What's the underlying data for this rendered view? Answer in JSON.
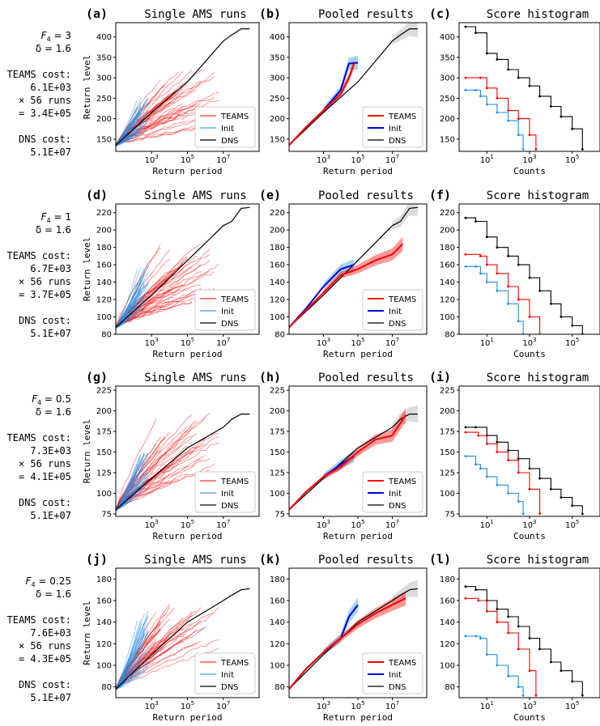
{
  "figure": {
    "legend_labels": [
      "TEAMS",
      "Init",
      "DNS"
    ],
    "colors": {
      "teams": "#ff0000",
      "init": "#1f8fe6",
      "init_pooled": "#0000dd",
      "dns": "#000000",
      "grey_band": "#a8a8a8"
    },
    "x_label_main": "Return period",
    "x_label_hist": "Counts",
    "y_label": "Return level",
    "x_ticks_main": [
      "10^3",
      "10^5",
      "10^7"
    ],
    "x_ticks_hist": [
      "10^1",
      "10^3",
      "10^5"
    ]
  },
  "rows": [
    {
      "annotation": {
        "forcing": "F_4 = 3",
        "delta": "δ = 1.6",
        "teams_cost_label": "TEAMS cost:",
        "teams_cost": "6.1E+03",
        "runs": "× 56 runs",
        "total": "= 3.4E+05",
        "dns_cost_label": "DNS cost:",
        "dns_cost": "5.1E+07"
      },
      "panels": [
        {
          "letter": "(a)",
          "title": "Single AMS runs"
        },
        {
          "letter": "(b)",
          "title": "Pooled results"
        },
        {
          "letter": "(c)",
          "title": "Score histogram"
        }
      ],
      "y_ticks": [
        150,
        200,
        250,
        300,
        350,
        400
      ],
      "ylim": [
        120,
        435
      ]
    },
    {
      "annotation": {
        "forcing": "F_4 = 1",
        "delta": "δ = 1.6",
        "teams_cost_label": "TEAMS cost:",
        "teams_cost": "6.7E+03",
        "runs": "× 56 runs",
        "total": "= 3.7E+05",
        "dns_cost_label": "DNS cost:",
        "dns_cost": "5.1E+07"
      },
      "panels": [
        {
          "letter": "(d)",
          "title": "Single AMS runs"
        },
        {
          "letter": "(e)",
          "title": "Pooled results"
        },
        {
          "letter": "(f)",
          "title": "Score histogram"
        }
      ],
      "y_ticks": [
        80,
        100,
        120,
        140,
        160,
        180,
        200,
        220
      ],
      "ylim": [
        80,
        230
      ]
    },
    {
      "annotation": {
        "forcing": "F_4 = 0.5",
        "delta": "δ = 1.6",
        "teams_cost_label": "TEAMS cost:",
        "teams_cost": "7.3E+03",
        "runs": "× 56 runs",
        "total": "= 4.1E+05",
        "dns_cost_label": "DNS cost:",
        "dns_cost": "5.1E+07"
      },
      "panels": [
        {
          "letter": "(g)",
          "title": "Single AMS runs"
        },
        {
          "letter": "(h)",
          "title": "Pooled results"
        },
        {
          "letter": "(i)",
          "title": "Score histogram"
        }
      ],
      "y_ticks": [
        75,
        100,
        125,
        150,
        175,
        200,
        225
      ],
      "ylim": [
        72,
        230
      ]
    },
    {
      "annotation": {
        "forcing": "F_4 = 0.25",
        "delta": "δ = 1.6",
        "teams_cost_label": "TEAMS cost:",
        "teams_cost": "7.6E+03",
        "runs": "× 56 runs",
        "total": "= 4.3E+05",
        "dns_cost_label": "DNS cost:",
        "dns_cost": "5.1E+07"
      },
      "panels": [
        {
          "letter": "(j)",
          "title": "Single AMS runs"
        },
        {
          "letter": "(k)",
          "title": "Pooled results"
        },
        {
          "letter": "(l)",
          "title": "Score histogram"
        }
      ],
      "y_ticks": [
        80,
        100,
        120,
        140,
        160,
        180
      ],
      "ylim": [
        70,
        190
      ]
    }
  ],
  "chart_data": [
    {
      "type": "line",
      "panel": "(a)",
      "title": "Single AMS runs",
      "xlabel": "Return period",
      "ylabel": "Return level",
      "x_scale": "log",
      "xlim": [
        10,
        1000000000
      ],
      "ylim": [
        120,
        435
      ],
      "series": [
        {
          "name": "DNS",
          "x": [
            10,
            1000,
            100000,
            10000000,
            30000000,
            100000000,
            300000000
          ],
          "values": [
            135,
            215,
            290,
            390,
            405,
            420,
            420
          ]
        },
        {
          "name": "TEAMS",
          "summary": "56 runs",
          "x_end_range": [
            3000,
            10000000
          ],
          "y_end_range": [
            180,
            330
          ]
        },
        {
          "name": "Init",
          "summary": "56 runs",
          "x_end": 1000,
          "y_end_range": [
            170,
            265
          ]
        }
      ]
    },
    {
      "type": "line",
      "panel": "(b)",
      "title": "Pooled results",
      "xlabel": "Return period",
      "x_scale": "log",
      "xlim": [
        10,
        1000000000
      ],
      "ylim": [
        120,
        435
      ],
      "series": [
        {
          "name": "DNS",
          "x": [
            10,
            1000,
            100000,
            10000000,
            30000000,
            100000000,
            300000000
          ],
          "values": [
            135,
            215,
            290,
            390,
            405,
            420,
            420
          ]
        },
        {
          "name": "TEAMS",
          "x": [
            10,
            100,
            1000,
            10000,
            30000,
            60000
          ],
          "values": [
            135,
            180,
            220,
            260,
            300,
            335
          ]
        },
        {
          "name": "Init",
          "x": [
            10,
            100,
            1000,
            10000,
            30000,
            100000
          ],
          "values": [
            135,
            180,
            220,
            270,
            335,
            337
          ]
        }
      ]
    },
    {
      "type": "line",
      "panel": "(c)",
      "title": "Score histogram",
      "xlabel": "Counts",
      "x_scale": "log",
      "xlim": [
        0.5,
        2000000
      ],
      "ylim": [
        120,
        435
      ],
      "series": [
        {
          "name": "DNS",
          "x": [
            1,
            3,
            10,
            30,
            100,
            300,
            1000,
            3000,
            10000,
            30000,
            100000,
            300000
          ],
          "values": [
            425,
            410,
            360,
            345,
            320,
            300,
            280,
            255,
            230,
            205,
            175,
            125
          ]
        },
        {
          "name": "TEAMS",
          "x": [
            1,
            5,
            10,
            30,
            100,
            300,
            1000,
            2000
          ],
          "values": [
            300,
            300,
            275,
            250,
            220,
            200,
            160,
            125
          ]
        },
        {
          "name": "Init",
          "x": [
            1,
            3,
            5,
            10,
            30,
            100,
            300,
            500
          ],
          "values": [
            270,
            270,
            255,
            235,
            215,
            195,
            160,
            125
          ]
        }
      ]
    },
    {
      "type": "line",
      "panel": "(d)",
      "title": "Single AMS runs",
      "xlabel": "Return period",
      "ylabel": "Return level",
      "x_scale": "log",
      "xlim": [
        10,
        1000000000
      ],
      "ylim": [
        80,
        230
      ],
      "series": [
        {
          "name": "DNS",
          "x": [
            10,
            1000,
            100000,
            10000000,
            30000000,
            100000000,
            300000000
          ],
          "values": [
            88,
            125,
            165,
            205,
            210,
            225,
            226
          ]
        },
        {
          "name": "TEAMS",
          "summary": "56 runs",
          "x_end_range": [
            3000,
            10000000
          ],
          "y_end_range": [
            115,
            185
          ]
        },
        {
          "name": "Init",
          "summary": "56 runs",
          "x_end": 1000,
          "y_end_range": [
            110,
            165
          ]
        }
      ]
    },
    {
      "type": "line",
      "panel": "(e)",
      "title": "Pooled results",
      "xlabel": "Return period",
      "x_scale": "log",
      "xlim": [
        10,
        1000000000
      ],
      "ylim": [
        80,
        230
      ],
      "series": [
        {
          "name": "DNS",
          "x": [
            10,
            1000,
            100000,
            10000000,
            30000000,
            100000000,
            300000000
          ],
          "values": [
            88,
            125,
            165,
            205,
            210,
            225,
            226
          ]
        },
        {
          "name": "TEAMS",
          "x": [
            10,
            100,
            1000,
            10000,
            100000,
            1000000,
            10000000,
            40000000
          ],
          "values": [
            88,
            108,
            128,
            148,
            155,
            165,
            172,
            184
          ]
        },
        {
          "name": "Init",
          "x": [
            10,
            100,
            1000,
            10000,
            60000
          ],
          "values": [
            88,
            110,
            135,
            155,
            160
          ]
        }
      ]
    },
    {
      "type": "line",
      "panel": "(f)",
      "title": "Score histogram",
      "xlabel": "Counts",
      "x_scale": "log",
      "xlim": [
        0.5,
        2000000
      ],
      "ylim": [
        80,
        230
      ],
      "series": [
        {
          "name": "DNS",
          "x": [
            1,
            3,
            10,
            30,
            100,
            300,
            1000,
            3000,
            10000,
            30000,
            100000,
            300000
          ],
          "values": [
            214,
            210,
            192,
            180,
            170,
            160,
            145,
            130,
            115,
            100,
            90,
            80
          ]
        },
        {
          "name": "TEAMS",
          "x": [
            1,
            5,
            10,
            30,
            100,
            300,
            1000,
            3000
          ],
          "values": [
            172,
            170,
            160,
            150,
            135,
            120,
            100,
            80
          ]
        },
        {
          "name": "Init",
          "x": [
            1,
            3,
            5,
            10,
            30,
            100,
            300,
            500
          ],
          "values": [
            158,
            158,
            150,
            140,
            130,
            115,
            95,
            80
          ]
        }
      ]
    },
    {
      "type": "line",
      "panel": "(g)",
      "title": "Single AMS runs",
      "xlabel": "Return period",
      "ylabel": "Return level",
      "x_scale": "log",
      "xlim": [
        10,
        1000000000
      ],
      "ylim": [
        72,
        230
      ],
      "series": [
        {
          "name": "DNS",
          "x": [
            10,
            1000,
            100000,
            10000000,
            30000000,
            100000000,
            300000000
          ],
          "values": [
            80,
            118,
            155,
            180,
            190,
            196,
            196
          ]
        },
        {
          "name": "TEAMS",
          "summary": "56 runs",
          "x_end_range": [
            3000,
            10000000
          ],
          "y_end_range": [
            115,
            200
          ]
        },
        {
          "name": "Init",
          "summary": "56 runs",
          "x_end": 1000,
          "y_end_range": [
            105,
            155
          ]
        }
      ]
    },
    {
      "type": "line",
      "panel": "(h)",
      "title": "Pooled results",
      "xlabel": "Return period",
      "x_scale": "log",
      "xlim": [
        10,
        1000000000
      ],
      "ylim": [
        72,
        230
      ],
      "series": [
        {
          "name": "DNS",
          "x": [
            10,
            1000,
            100000,
            10000000,
            30000000,
            100000000,
            300000000
          ],
          "values": [
            80,
            118,
            155,
            180,
            190,
            196,
            196
          ]
        },
        {
          "name": "TEAMS",
          "x": [
            10,
            100,
            1000,
            10000,
            100000,
            1000000,
            10000000,
            60000000
          ],
          "values": [
            80,
            102,
            120,
            132,
            150,
            165,
            170,
            195
          ]
        },
        {
          "name": "Init",
          "x": [
            10,
            100,
            1000,
            10000,
            60000
          ],
          "values": [
            80,
            102,
            120,
            135,
            145
          ]
        }
      ]
    },
    {
      "type": "line",
      "panel": "(i)",
      "title": "Score histogram",
      "xlabel": "Counts",
      "x_scale": "log",
      "xlim": [
        0.5,
        2000000
      ],
      "ylim": [
        72,
        230
      ],
      "series": [
        {
          "name": "DNS",
          "x": [
            1,
            3,
            10,
            30,
            100,
            300,
            1000,
            3000,
            10000,
            30000,
            100000,
            300000
          ],
          "values": [
            180,
            180,
            170,
            162,
            152,
            142,
            130,
            118,
            105,
            95,
            85,
            75
          ]
        },
        {
          "name": "TEAMS",
          "x": [
            1,
            4,
            10,
            30,
            100,
            300,
            1000,
            3000
          ],
          "values": [
            174,
            170,
            160,
            150,
            140,
            125,
            105,
            75
          ]
        },
        {
          "name": "Init",
          "x": [
            1,
            3,
            5,
            10,
            30,
            100,
            300,
            500
          ],
          "values": [
            145,
            135,
            130,
            120,
            110,
            100,
            90,
            75
          ]
        }
      ]
    },
    {
      "type": "line",
      "panel": "(j)",
      "title": "Single AMS runs",
      "xlabel": "Return period",
      "ylabel": "Return level",
      "x_scale": "log",
      "xlim": [
        10,
        1000000000
      ],
      "ylim": [
        70,
        190
      ],
      "series": [
        {
          "name": "DNS",
          "x": [
            10,
            1000,
            100000,
            10000000,
            30000000,
            100000000,
            300000000
          ],
          "values": [
            78,
            110,
            140,
            160,
            165,
            170,
            171
          ]
        },
        {
          "name": "TEAMS",
          "summary": "56 runs",
          "x_end_range": [
            3000,
            10000000
          ],
          "y_end_range": [
            115,
            160
          ]
        },
        {
          "name": "Init",
          "summary": "56 runs",
          "x_end": 1000,
          "y_end_range": [
            95,
            155
          ]
        }
      ]
    },
    {
      "type": "line",
      "panel": "(k)",
      "title": "Pooled results",
      "xlabel": "Return period",
      "x_scale": "log",
      "xlim": [
        10,
        1000000000
      ],
      "ylim": [
        70,
        190
      ],
      "series": [
        {
          "name": "DNS",
          "x": [
            10,
            1000,
            100000,
            10000000,
            30000000,
            100000000,
            300000000
          ],
          "values": [
            78,
            110,
            140,
            160,
            165,
            170,
            171
          ]
        },
        {
          "name": "TEAMS",
          "x": [
            10,
            100,
            1000,
            10000,
            100000,
            1000000,
            10000000,
            60000000
          ],
          "values": [
            78,
            97,
            112,
            125,
            138,
            148,
            156,
            162
          ]
        },
        {
          "name": "Init",
          "x": [
            10,
            100,
            1000,
            10000,
            30000,
            100000
          ],
          "values": [
            78,
            97,
            112,
            125,
            145,
            156
          ]
        }
      ]
    },
    {
      "type": "line",
      "panel": "(l)",
      "title": "Score histogram",
      "xlabel": "Counts",
      "x_scale": "log",
      "xlim": [
        0.5,
        2000000
      ],
      "ylim": [
        70,
        190
      ],
      "series": [
        {
          "name": "DNS",
          "x": [
            1,
            3,
            10,
            30,
            100,
            300,
            1000,
            3000,
            10000,
            30000,
            100000,
            300000
          ],
          "values": [
            173,
            170,
            160,
            152,
            145,
            136,
            125,
            115,
            103,
            95,
            85,
            72
          ]
        },
        {
          "name": "TEAMS",
          "x": [
            1,
            4,
            10,
            30,
            100,
            300,
            1000,
            2000
          ],
          "values": [
            162,
            160,
            150,
            140,
            130,
            115,
            95,
            72
          ]
        },
        {
          "name": "Init",
          "x": [
            1,
            3,
            5,
            10,
            30,
            100,
            300,
            500
          ],
          "values": [
            127,
            127,
            125,
            110,
            100,
            90,
            80,
            72
          ]
        }
      ]
    }
  ]
}
